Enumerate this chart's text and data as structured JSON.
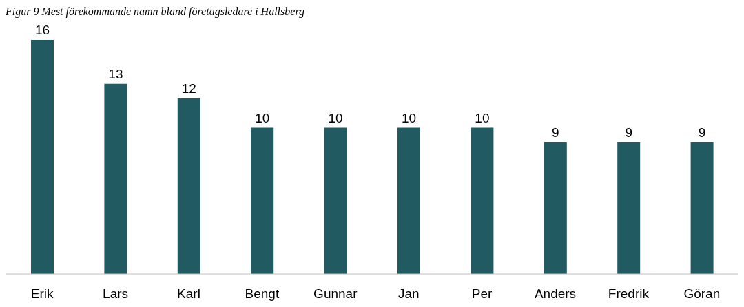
{
  "chart_data": {
    "type": "bar",
    "title": "Figur 9 Mest förekommande namn bland företagsledare i Hallsberg",
    "categories": [
      "Erik",
      "Lars",
      "Karl",
      "Bengt",
      "Gunnar",
      "Jan",
      "Per",
      "Anders",
      "Fredrik",
      "Göran"
    ],
    "values": [
      16,
      13,
      12,
      10,
      10,
      10,
      10,
      9,
      9,
      9
    ],
    "color": "#215a60",
    "data_labels": true
  }
}
